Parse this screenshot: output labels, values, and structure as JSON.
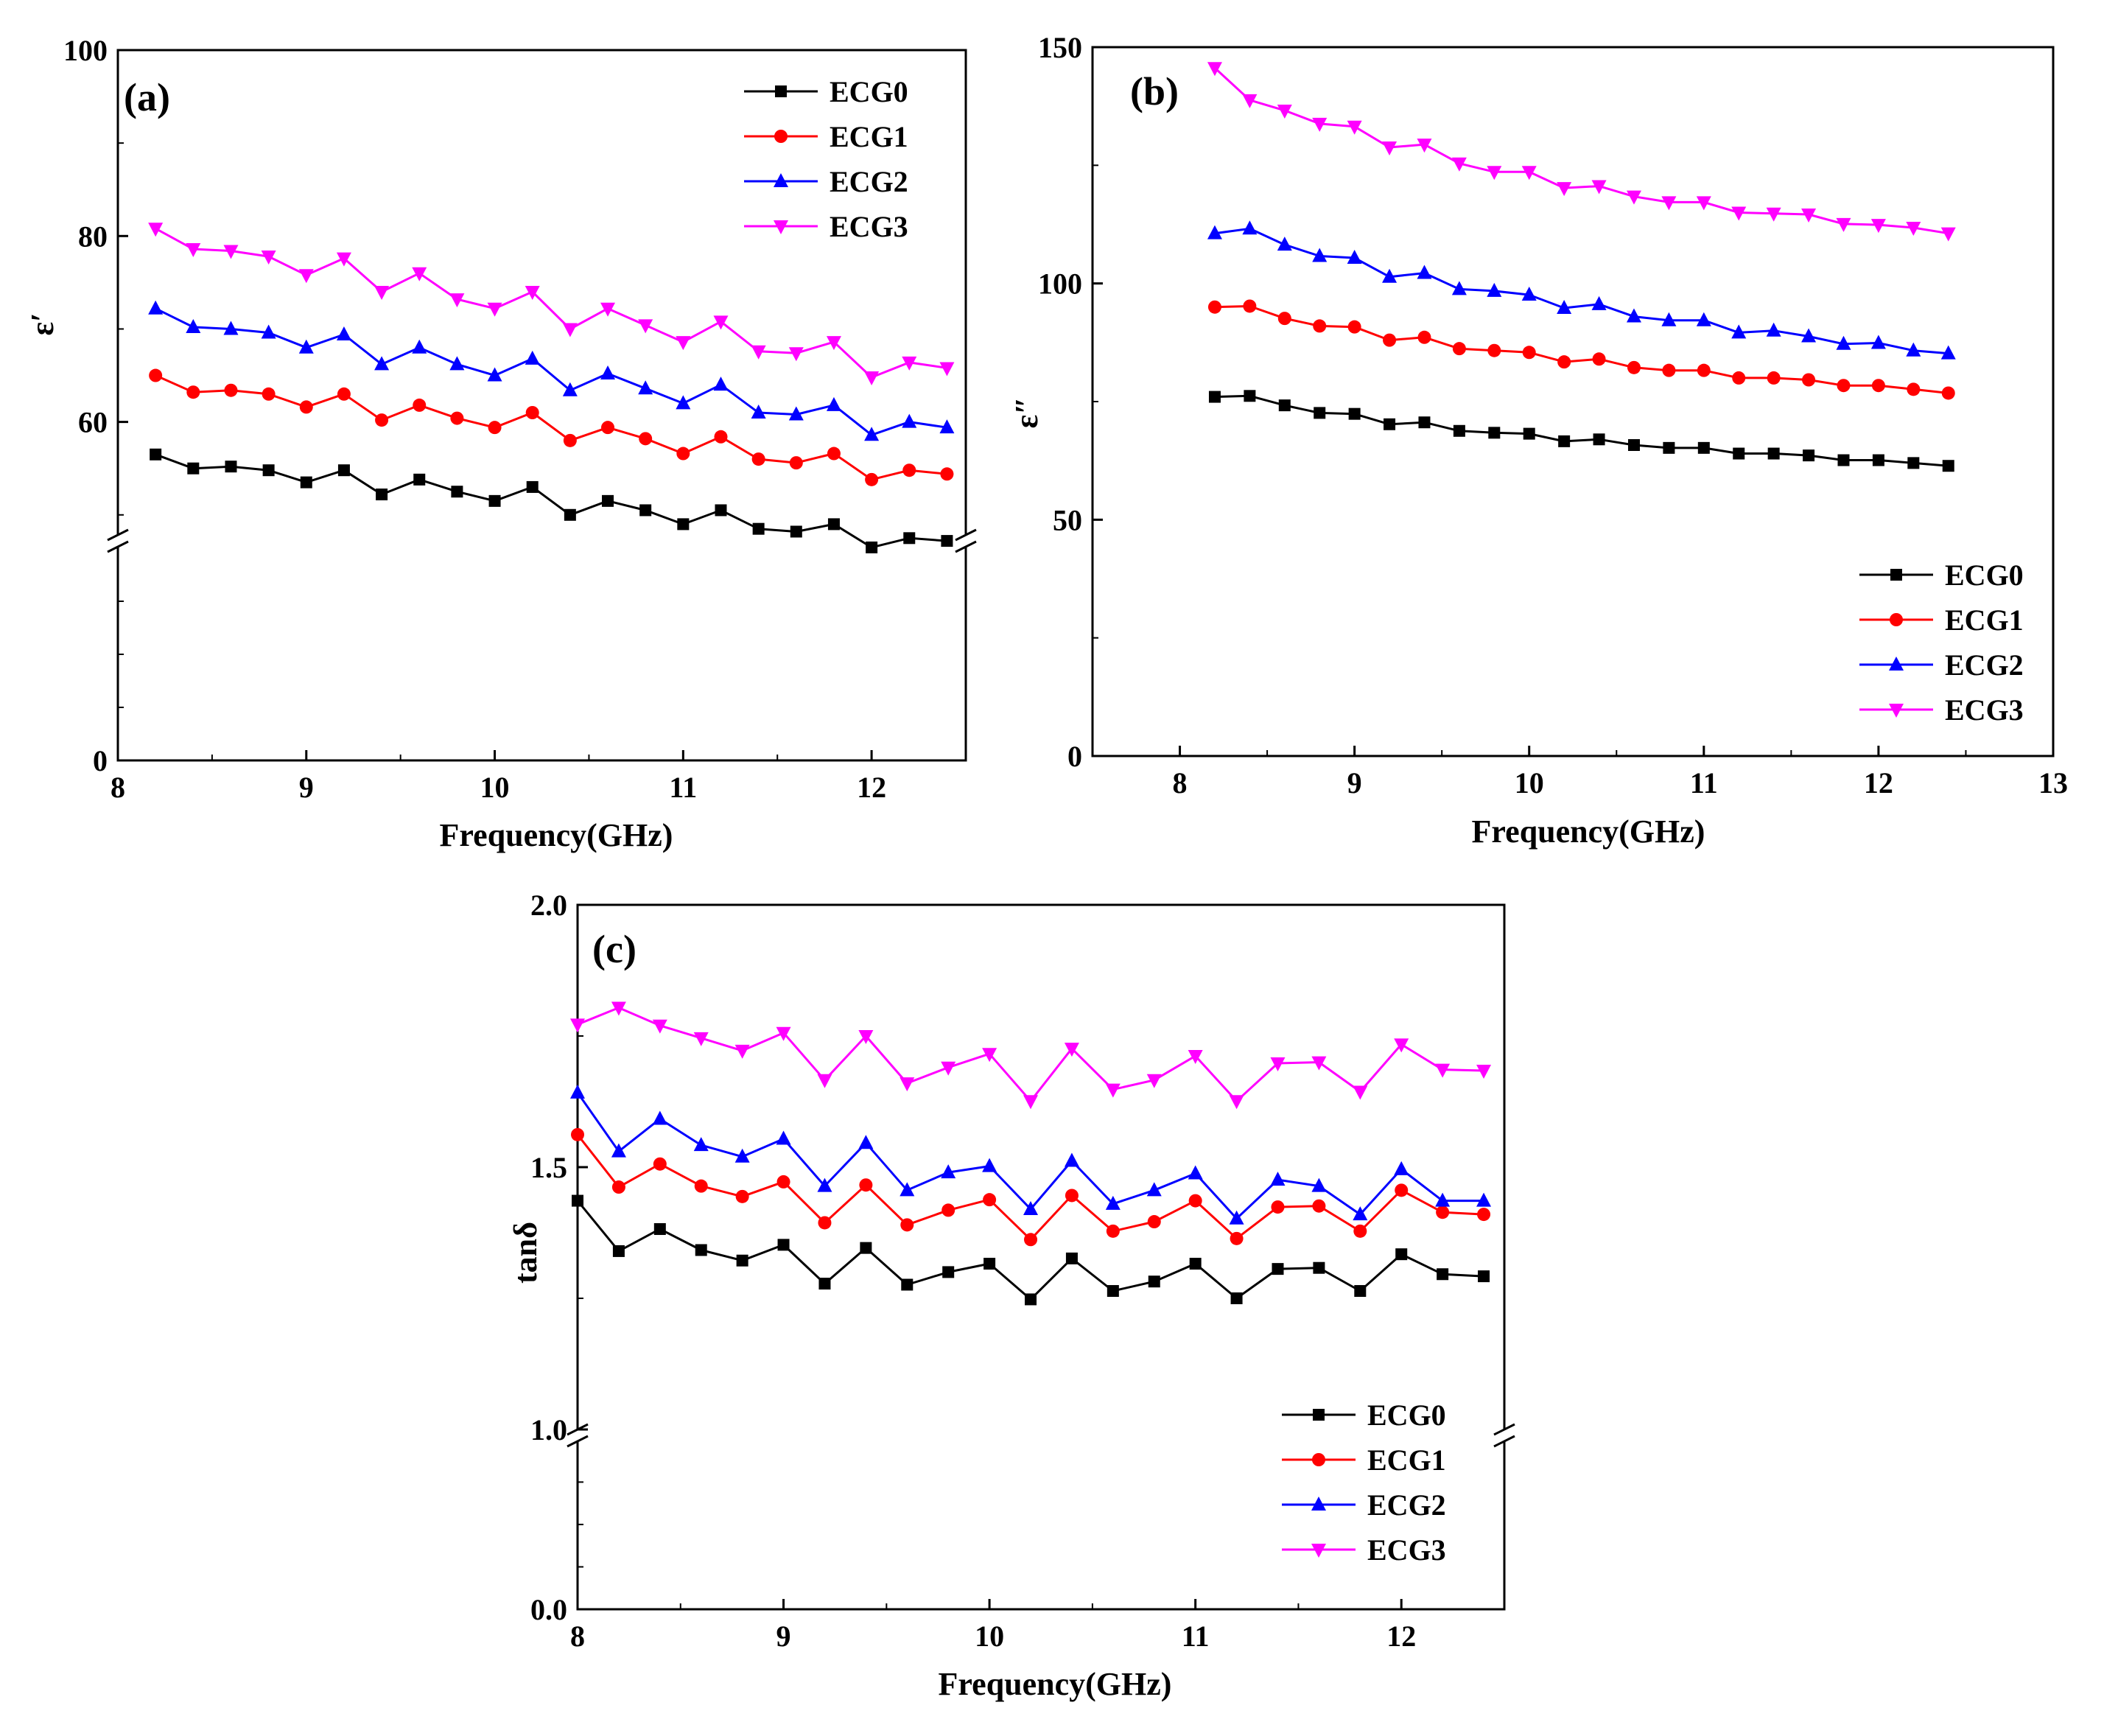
{
  "chart_data": [
    {
      "type": "line",
      "panel_label": "(a)",
      "xlabel": "Frequency(GHz)",
      "ylabel": "ε′",
      "xlim": [
        8,
        12.5
      ],
      "ylim": [
        0,
        100
      ],
      "axis_break": [
        40,
        48
      ],
      "xticks": [
        "8",
        "9",
        "10",
        "11",
        "12"
      ],
      "yticks": [
        "0",
        "60",
        "80",
        "100"
      ],
      "legend_position": "top-right",
      "x": [
        8.2,
        8.4,
        8.6,
        8.8,
        9.0,
        9.2,
        9.4,
        9.6,
        9.8,
        10.0,
        10.2,
        10.4,
        10.6,
        10.8,
        11.0,
        11.2,
        11.4,
        11.6,
        11.8,
        12.0,
        12.2,
        12.4
      ],
      "series": [
        {
          "name": "ECG0",
          "color": "#000000",
          "marker": "square",
          "values": [
            56.5,
            55.0,
            55.2,
            54.8,
            53.5,
            54.8,
            52.2,
            53.8,
            52.5,
            51.5,
            53.0,
            50.0,
            51.5,
            50.5,
            49.0,
            50.5,
            48.5,
            48.2,
            49.0,
            46.5,
            47.5,
            47.2
          ]
        },
        {
          "name": "ECG1",
          "color": "#ff0000",
          "marker": "circle",
          "values": [
            65.0,
            63.2,
            63.4,
            63.0,
            61.6,
            63.0,
            60.2,
            61.8,
            60.4,
            59.4,
            61.0,
            58.0,
            59.4,
            58.2,
            56.6,
            58.4,
            56.0,
            55.6,
            56.6,
            53.8,
            54.8,
            54.4
          ]
        },
        {
          "name": "ECG2",
          "color": "#0000ff",
          "marker": "triangle-up",
          "values": [
            72.2,
            70.2,
            70.0,
            69.6,
            68.0,
            69.4,
            66.2,
            68.0,
            66.2,
            65.0,
            66.8,
            63.4,
            65.2,
            63.6,
            62.0,
            64.0,
            61.0,
            60.8,
            61.8,
            58.6,
            60.0,
            59.4
          ]
        },
        {
          "name": "ECG3",
          "color": "#ff00ff",
          "marker": "triangle-down",
          "values": [
            80.8,
            78.6,
            78.4,
            77.8,
            75.8,
            77.6,
            74.0,
            76.0,
            73.2,
            72.2,
            74.0,
            70.0,
            72.2,
            70.4,
            68.6,
            70.8,
            67.6,
            67.4,
            68.6,
            64.8,
            66.4,
            65.8
          ]
        }
      ]
    },
    {
      "type": "line",
      "panel_label": "(b)",
      "xlabel": "Frequency(GHz)",
      "ylabel": "ε″",
      "xlim": [
        7.5,
        13
      ],
      "ylim": [
        0,
        150
      ],
      "xticks": [
        "8",
        "9",
        "10",
        "11",
        "12",
        "13"
      ],
      "yticks": [
        "0",
        "50",
        "100",
        "150"
      ],
      "legend_position": "bottom-right",
      "x": [
        8.2,
        8.4,
        8.6,
        8.8,
        9.0,
        9.2,
        9.4,
        9.6,
        9.8,
        10.0,
        10.2,
        10.4,
        10.6,
        10.8,
        11.0,
        11.2,
        11.4,
        11.6,
        11.8,
        12.0,
        12.2,
        12.4
      ],
      "series": [
        {
          "name": "ECG0",
          "color": "#000000",
          "marker": "square",
          "values": [
            76.0,
            76.2,
            74.2,
            72.6,
            72.4,
            70.2,
            70.6,
            68.8,
            68.4,
            68.2,
            66.6,
            67.0,
            65.8,
            65.2,
            65.2,
            64.0,
            64.0,
            63.6,
            62.6,
            62.6,
            62.0,
            61.4
          ]
        },
        {
          "name": "ECG1",
          "color": "#ff0000",
          "marker": "circle",
          "values": [
            95.0,
            95.2,
            92.6,
            91.0,
            90.8,
            88.0,
            88.6,
            86.2,
            85.8,
            85.4,
            83.4,
            84.0,
            82.2,
            81.6,
            81.6,
            80.0,
            80.0,
            79.6,
            78.4,
            78.4,
            77.6,
            76.8
          ]
        },
        {
          "name": "ECG2",
          "color": "#0000ff",
          "marker": "triangle-up",
          "values": [
            110.6,
            111.6,
            108.2,
            105.8,
            105.4,
            101.4,
            102.2,
            98.8,
            98.4,
            97.6,
            94.8,
            95.6,
            93.0,
            92.2,
            92.2,
            89.6,
            90.0,
            88.8,
            87.2,
            87.4,
            85.8,
            85.2
          ]
        },
        {
          "name": "ECG3",
          "color": "#ff00ff",
          "marker": "triangle-down",
          "values": [
            145.6,
            138.8,
            136.6,
            133.8,
            133.2,
            128.8,
            129.4,
            125.4,
            123.6,
            123.6,
            120.2,
            120.6,
            118.4,
            117.2,
            117.2,
            115.0,
            114.8,
            114.6,
            112.6,
            112.4,
            111.8,
            110.6
          ]
        }
      ]
    },
    {
      "type": "line",
      "panel_label": "(c)",
      "xlabel": "Frequency(GHz)",
      "ylabel": "tanδ",
      "xlim": [
        8,
        12.5
      ],
      "ylim": [
        0.0,
        2.0
      ],
      "axis_break": [
        0.995,
        1.0
      ],
      "xticks": [
        "8",
        "9",
        "10",
        "11",
        "12"
      ],
      "yticks": [
        "0.0",
        "1.0",
        "1.5",
        "2.0"
      ],
      "legend_position": "bottom-right",
      "x": [
        8.0,
        8.2,
        8.4,
        8.6,
        8.8,
        9.0,
        9.2,
        9.4,
        9.6,
        9.8,
        10.0,
        10.2,
        10.4,
        10.6,
        10.8,
        11.0,
        11.2,
        11.4,
        11.6,
        11.8,
        12.0,
        12.2,
        12.4
      ],
      "series": [
        {
          "name": "ECG0",
          "color": "#000000",
          "marker": "square",
          "values": [
            1.436,
            1.34,
            1.382,
            1.342,
            1.322,
            1.352,
            1.278,
            1.346,
            1.276,
            1.3,
            1.316,
            1.248,
            1.326,
            1.264,
            1.282,
            1.316,
            1.25,
            1.306,
            1.308,
            1.264,
            1.334,
            1.296,
            1.292
          ]
        },
        {
          "name": "ECG1",
          "color": "#ff0000",
          "marker": "circle",
          "values": [
            1.562,
            1.462,
            1.506,
            1.464,
            1.444,
            1.472,
            1.394,
            1.466,
            1.39,
            1.418,
            1.438,
            1.362,
            1.446,
            1.378,
            1.396,
            1.436,
            1.364,
            1.424,
            1.426,
            1.378,
            1.456,
            1.414,
            1.41
          ]
        },
        {
          "name": "ECG2",
          "color": "#0000ff",
          "marker": "triangle-up",
          "values": [
            1.642,
            1.53,
            1.592,
            1.542,
            1.52,
            1.554,
            1.464,
            1.546,
            1.456,
            1.49,
            1.502,
            1.42,
            1.512,
            1.43,
            1.456,
            1.488,
            1.402,
            1.476,
            1.464,
            1.41,
            1.496,
            1.436,
            1.436
          ]
        },
        {
          "name": "ECG3",
          "color": "#ff00ff",
          "marker": "triangle-down",
          "values": [
            1.772,
            1.804,
            1.77,
            1.746,
            1.722,
            1.756,
            1.666,
            1.75,
            1.66,
            1.69,
            1.716,
            1.626,
            1.726,
            1.648,
            1.666,
            1.712,
            1.626,
            1.698,
            1.7,
            1.644,
            1.734,
            1.686,
            1.684
          ]
        }
      ]
    }
  ]
}
